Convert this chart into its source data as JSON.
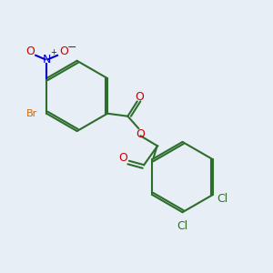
{
  "background_color": "#e8eef5",
  "bond_color": "#2d6e2d",
  "atom_colors": {
    "O": "#cc0000",
    "N": "#0000cc",
    "Br": "#cc6600",
    "Cl": "#2d6e2d",
    "N_plus": "#0000cc"
  },
  "figsize": [
    3.0,
    3.0
  ],
  "dpi": 100
}
